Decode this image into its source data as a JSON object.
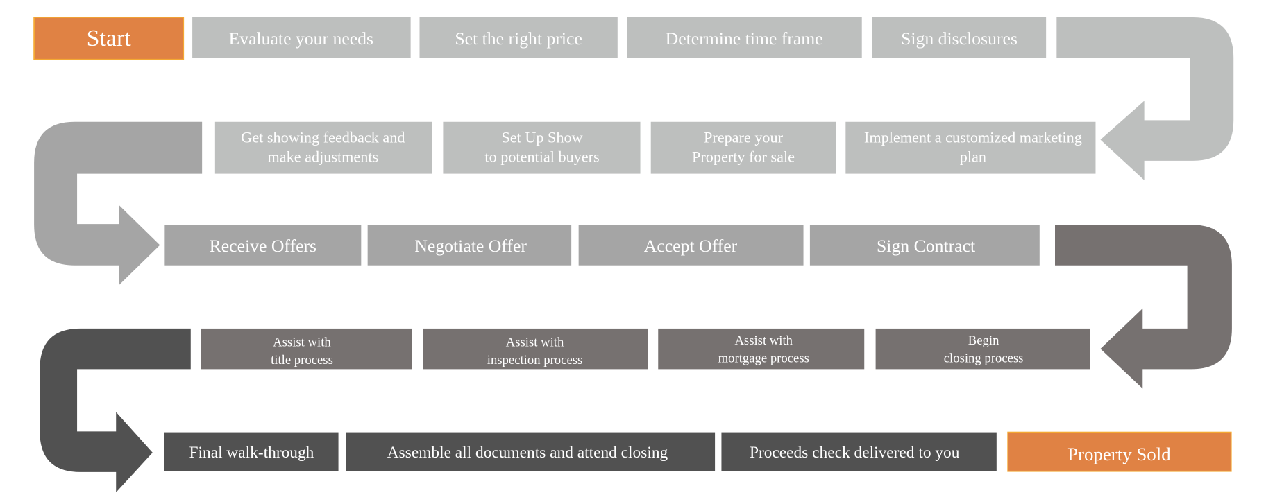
{
  "colors": {
    "row_light": "#bdbfbe",
    "row_mid": "#a5a5a5",
    "row_dark": "#767170",
    "row_darkest": "#515151",
    "accent": "#e08244",
    "accent_border": "#f4a833",
    "text": "#ffffff"
  },
  "start": "Start",
  "end": "Property Sold",
  "row1": [
    "Evaluate your needs",
    "Set the right price",
    "Determine time frame",
    "Sign disclosures"
  ],
  "row2": [
    [
      "Get showing feedback and",
      "make adjustments"
    ],
    [
      "Set Up Show",
      "to potential buyers"
    ],
    [
      "Prepare your",
      "Property for sale"
    ],
    [
      "Implement a customized marketing",
      "plan"
    ]
  ],
  "row3": [
    "Receive Offers",
    "Negotiate Offer",
    "Accept Offer",
    "Sign Contract"
  ],
  "row4": [
    [
      "Assist with",
      "title process"
    ],
    [
      "Assist with",
      "inspection process"
    ],
    [
      "Assist with",
      "mortgage process"
    ],
    [
      "Begin",
      "closing process"
    ]
  ],
  "row5": [
    "Final walk-through",
    "Assemble all documents and attend closing",
    "Proceeds check delivered to you"
  ]
}
